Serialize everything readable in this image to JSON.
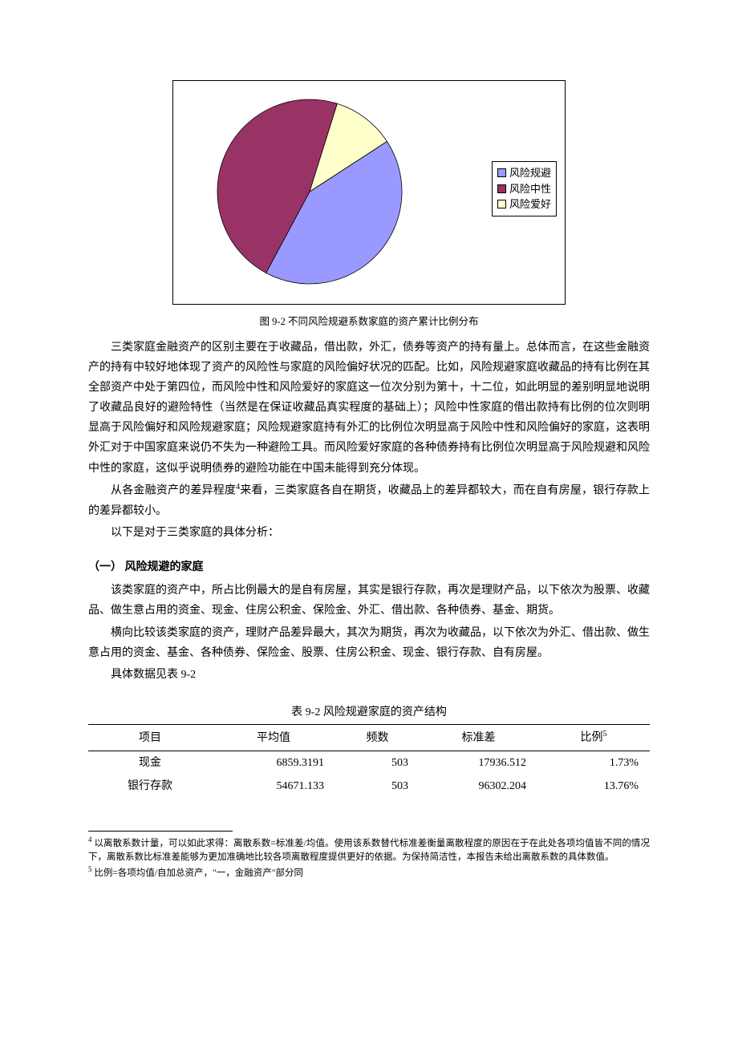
{
  "chart": {
    "type": "pie",
    "background_color": "#ffffff",
    "border_color": "#000000",
    "slices": [
      {
        "label": "风险规避",
        "value": 42,
        "color": "#9999ff"
      },
      {
        "label": "风险中性",
        "value": 47,
        "color": "#993366"
      },
      {
        "label": "风险爱好",
        "value": 11,
        "color": "#ffffcc"
      }
    ],
    "slice_border_color": "#000000",
    "start_angle_deg": -33,
    "caption": "图 9-2  不同风险规避系数家庭的资产累计比例分布",
    "caption_fontsize": 12.5,
    "legend_border_color": "#000000"
  },
  "para1": "三类家庭金融资产的区别主要在于收藏品，借出款，外汇，债券等资产的持有量上。总体而言，在这些金融资产的持有中较好地体现了资产的风险性与家庭的风险偏好状况的匹配。比如，风险规避家庭收藏品的持有比例在其全部资产中处于第四位，而风险中性和风险爱好的家庭这一位次分别为第十，十二位，如此明显的差别明显地说明了收藏品良好的避险特性（当然是在保证收藏品真实程度的基础上）；风险中性家庭的借出款持有比例的位次则明显高于风险偏好和风险规避家庭；风险规避家庭持有外汇的比例位次明显高于风险中性和风险偏好的家庭，这表明外汇对于中国家庭来说仍不失为一种避险工具。而风险爱好家庭的各种债券持有比例位次明显高于风险规避和风险中性的家庭，这似乎说明债券的避险功能在中国未能得到充分体现。",
  "para2_pre": "从各金融资产的差异程度",
  "para2_sup": "4",
  "para2_post": "来看，三类家庭各自在期货，收藏品上的差异都较大，而在自有房屋，银行存款上的差异都较小。",
  "para3": "以下是对于三类家庭的具体分析：",
  "section_heading": "（一） 风险规避的家庭",
  "para4": "该类家庭的资产中，所占比例最大的是自有房屋，其实是银行存款，再次是理财产品，以下依次为股票、收藏品、做生意占用的资金、现金、住房公积金、保险金、外汇、借出款、各种债券、基金、期货。",
  "para5": "横向比较该类家庭的资产，理财产品差异最大，其次为期货，再次为收藏品，以下依次为外汇、借出款、做生意占用的资金、基金、各种债券、保险金、股票、住房公积金、现金、银行存款、自有房屋。",
  "para6": "具体数据见表 9-2",
  "table": {
    "caption": "表 9-2  风险规避家庭的资产结构",
    "columns": [
      "项目",
      "平均值",
      "频数",
      "标准差",
      "比例"
    ],
    "ratio_sup": "5",
    "rows": [
      [
        "现金",
        "6859.3191",
        "503",
        "17936.512",
        "1.73%"
      ],
      [
        "银行存款",
        "54671.133",
        "503",
        "96302.204",
        "13.76%"
      ]
    ],
    "col_align": [
      "center",
      "right",
      "right",
      "right",
      "right"
    ],
    "border_color": "#000000"
  },
  "footnotes": {
    "f4_num": "4",
    "f4_text": " 以离散系数计量，可以如此求得：离散系数=标准差/均值。使用该系数替代标准差衡量离散程度的原因在于在此处各项均值皆不同的情况下，离散系数比标准差能够为更加准确地比较各项离散程度提供更好的依据。为保持简洁性，本报告未给出离散系数的具体数值。",
    "f5_num": "5",
    "f5_text": " 比例=各项均值/自加总资产，\"一，金融资产\"部分同"
  }
}
